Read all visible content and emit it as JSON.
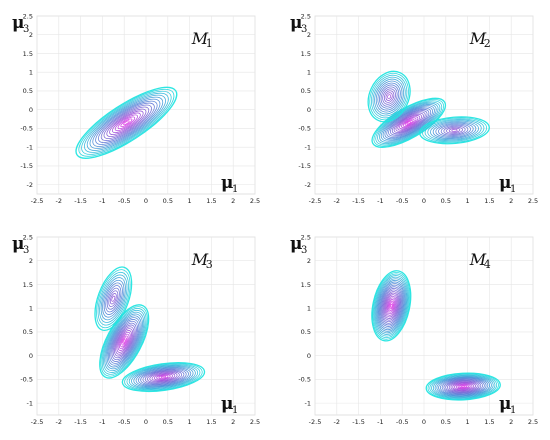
{
  "chart_data": [
    {
      "type": "contour",
      "model_label": "M",
      "model_index": "1",
      "xlabel": "μ",
      "xlabel_sub": "1",
      "ylabel": "μ",
      "ylabel_sub": "3",
      "xlim": [
        -2.5,
        2.5
      ],
      "ylim": [
        -2.25,
        2.5
      ],
      "xticks": [
        "-2.5",
        "-2",
        "-1.5",
        "-1",
        "-0.5",
        "0",
        "0.5",
        "1",
        "1.5",
        "2",
        "2.5"
      ],
      "yticks": [
        "-2",
        "-1.5",
        "-1",
        "-0.5",
        "0",
        "0.5",
        "1",
        "1.5",
        "2",
        "2.5"
      ],
      "grid": true,
      "contour_levels": 18,
      "colormap": [
        "#22e5e0",
        "#4a90d8",
        "#8a5cd6",
        "#e43be8"
      ],
      "modes": [
        {
          "center": [
            -0.45,
            -0.35
          ],
          "semi_axes": [
            1.35,
            0.48
          ],
          "rotation_deg": -33,
          "weight": 1.0
        }
      ]
    },
    {
      "type": "contour",
      "model_label": "M",
      "model_index": "2",
      "xlabel": "μ",
      "xlabel_sub": "1",
      "ylabel": "μ",
      "ylabel_sub": "3",
      "xlim": [
        -2.5,
        2.5
      ],
      "ylim": [
        -2.25,
        2.5
      ],
      "xticks": [
        "-2.5",
        "-2",
        "-1.5",
        "-1",
        "-0.5",
        "0",
        "0.5",
        "1",
        "1.5",
        "2",
        "2.5"
      ],
      "yticks": [
        "-2",
        "-1.5",
        "-1",
        "-0.5",
        "0",
        "0.5",
        "1",
        "1.5",
        "2",
        "2.5"
      ],
      "grid": true,
      "contour_levels": 20,
      "colormap": [
        "#22e5e0",
        "#4a90d8",
        "#8a5cd6",
        "#e43be8"
      ],
      "modes": [
        {
          "center": [
            -0.35,
            -0.35
          ],
          "semi_axes": [
            0.95,
            0.4
          ],
          "rotation_deg": -30,
          "weight": 1.0
        },
        {
          "center": [
            -0.8,
            0.35
          ],
          "semi_axes": [
            0.45,
            0.7
          ],
          "rotation_deg": 25,
          "weight": 0.45
        },
        {
          "center": [
            0.7,
            -0.55
          ],
          "semi_axes": [
            0.8,
            0.35
          ],
          "rotation_deg": -5,
          "weight": 0.4
        }
      ]
    },
    {
      "type": "contour",
      "model_label": "M",
      "model_index": "3",
      "xlabel": "μ",
      "xlabel_sub": "1",
      "ylabel": "μ",
      "ylabel_sub": "3",
      "xlim": [
        -2.5,
        2.5
      ],
      "ylim": [
        -1.25,
        2.5
      ],
      "xticks": [
        "-2.5",
        "-2",
        "-1.5",
        "-1",
        "-0.5",
        "0",
        "0.5",
        "1",
        "1.5",
        "2",
        "2.5"
      ],
      "yticks": [
        "-1",
        "-0.5",
        "0",
        "0.5",
        "1",
        "1.5",
        "2",
        "2.5"
      ],
      "grid": true,
      "contour_levels": 20,
      "colormap": [
        "#22e5e0",
        "#4a90d8",
        "#8a5cd6",
        "#e43be8"
      ],
      "modes": [
        {
          "center": [
            -0.5,
            0.3
          ],
          "semi_axes": [
            0.4,
            0.85
          ],
          "rotation_deg": 28,
          "weight": 1.0
        },
        {
          "center": [
            0.4,
            -0.45
          ],
          "semi_axes": [
            0.95,
            0.28
          ],
          "rotation_deg": -8,
          "weight": 0.85
        },
        {
          "center": [
            -0.75,
            1.2
          ],
          "semi_axes": [
            0.35,
            0.7
          ],
          "rotation_deg": 20,
          "weight": 0.35
        }
      ]
    },
    {
      "type": "contour",
      "model_label": "M",
      "model_index": "4",
      "xlabel": "μ",
      "xlabel_sub": "1",
      "ylabel": "μ",
      "ylabel_sub": "3",
      "xlim": [
        -2.5,
        2.5
      ],
      "ylim": [
        -1.25,
        2.5
      ],
      "xticks": [
        "-2.5",
        "-2",
        "-1.5",
        "-1",
        "-0.5",
        "0",
        "0.5",
        "1",
        "1.5",
        "2",
        "2.5"
      ],
      "yticks": [
        "-1",
        "-0.5",
        "0",
        "0.5",
        "1",
        "1.5",
        "2",
        "2.5"
      ],
      "grid": true,
      "contour_levels": 22,
      "colormap": [
        "#22e5e0",
        "#4a90d8",
        "#8a5cd6",
        "#e43be8"
      ],
      "modes": [
        {
          "center": [
            -0.75,
            1.05
          ],
          "semi_axes": [
            0.42,
            0.75
          ],
          "rotation_deg": 12,
          "weight": 1.0
        },
        {
          "center": [
            0.9,
            -0.65
          ],
          "semi_axes": [
            0.85,
            0.28
          ],
          "rotation_deg": -3,
          "weight": 0.95
        }
      ]
    }
  ]
}
